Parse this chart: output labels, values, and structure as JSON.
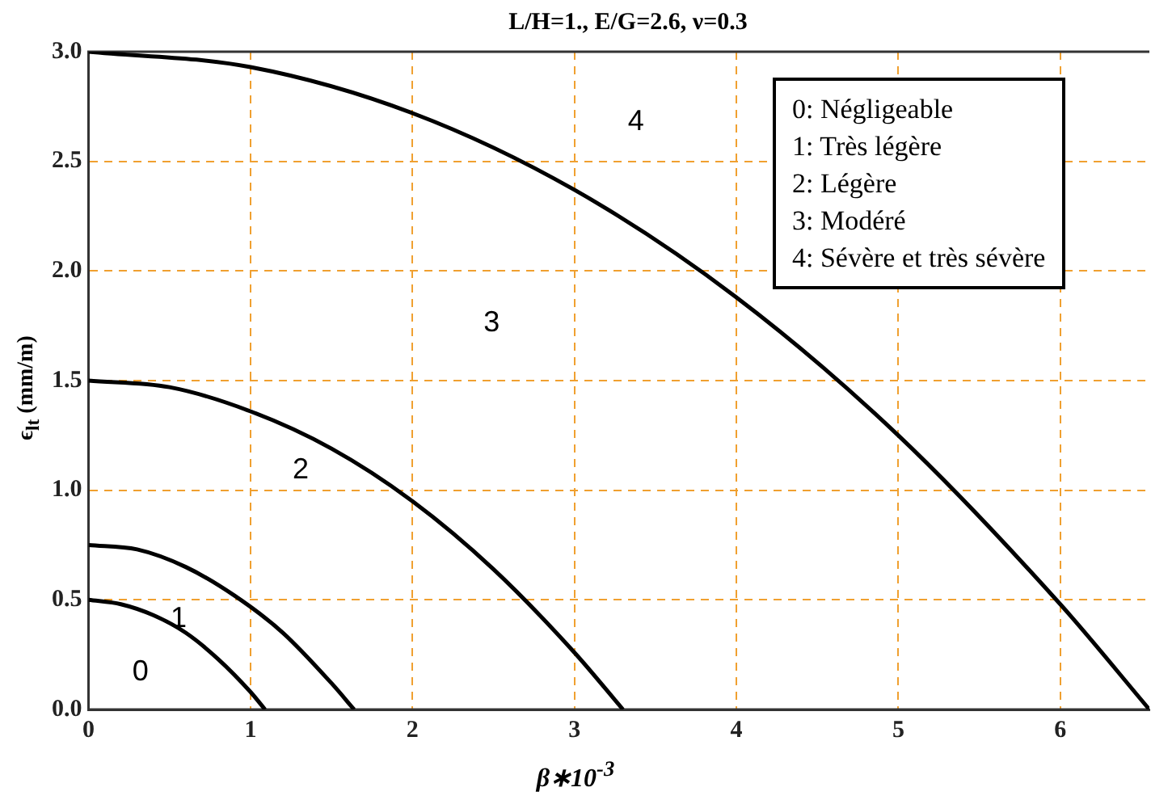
{
  "chart_data": {
    "type": "line",
    "title": "L/H=1., E/G=2.6, ν=0.3",
    "xlabel": "β∗10$^{-3}$",
    "ylabel": "ϵ$_{lt}$ (mm/m)",
    "xlim": [
      0,
      6.55
    ],
    "xticks": [
      0,
      1,
      2,
      3,
      4,
      5,
      6
    ],
    "ylim": [
      0,
      3
    ],
    "yticks": [
      {
        "value": 0,
        "label": "0.0"
      },
      {
        "value": 0.5,
        "label": "0.5"
      },
      {
        "value": 1,
        "label": "1.0"
      },
      {
        "value": 1.5,
        "label": "1.5"
      },
      {
        "value": 2,
        "label": "2.0"
      },
      {
        "value": 2.5,
        "label": "2.5"
      },
      {
        "value": 3,
        "label": "3.0"
      }
    ],
    "grid": true,
    "legend": false,
    "marker": "none",
    "line_style": "solid",
    "series": [
      {
        "color": "#000000",
        "x": [
          0,
          0.2,
          0.4,
          0.6,
          0.8,
          1.0,
          1.09
        ],
        "values": [
          0.5,
          0.48,
          0.43,
          0.35,
          0.23,
          0.08,
          0
        ]
      },
      {
        "color": "#000000",
        "x": [
          0,
          0.3,
          0.6,
          0.9,
          1.2,
          1.5,
          1.64
        ],
        "values": [
          0.75,
          0.73,
          0.65,
          0.52,
          0.35,
          0.12,
          0
        ]
      },
      {
        "color": "#000000",
        "x": [
          0,
          0.5,
          1,
          1.5,
          2,
          2.5,
          3,
          3.3
        ],
        "values": [
          1.5,
          1.47,
          1.36,
          1.19,
          0.95,
          0.64,
          0.26,
          0
        ]
      },
      {
        "color": "#000000",
        "x": [
          0,
          1,
          2,
          3,
          4,
          5,
          6,
          6.55
        ],
        "values": [
          3,
          2.93,
          2.72,
          2.37,
          1.88,
          1.25,
          0.48,
          0
        ]
      }
    ],
    "annotations": [
      "0",
      "1",
      "2",
      "3",
      "4",
      "0: Négligeable",
      "1: Très légère",
      "2: Légère",
      "3: Modéré",
      "4: Sévère et très sévère"
    ]
  }
}
